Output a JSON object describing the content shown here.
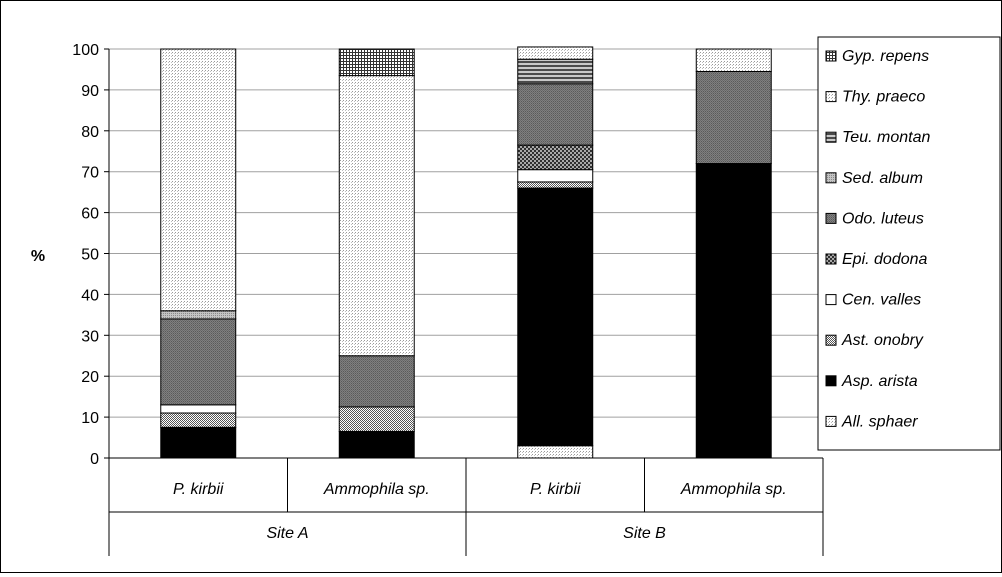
{
  "chart_data": {
    "type": "bar",
    "stacked": true,
    "title": "",
    "ylabel": "%",
    "xlabel": "",
    "ylim": [
      0,
      100
    ],
    "yticks": [
      0,
      10,
      20,
      30,
      40,
      50,
      60,
      70,
      80,
      90,
      100
    ],
    "grid": true,
    "legend_position": "right",
    "categories": [
      "P. kirbii",
      "Ammophila sp.",
      "P. kirbii",
      "Ammophila sp."
    ],
    "groups": [
      {
        "label": "Site A",
        "categories": [
          0,
          1
        ]
      },
      {
        "label": "Site B",
        "categories": [
          2,
          3
        ]
      }
    ],
    "series": [
      {
        "name": "All. sphaer",
        "values": [
          0,
          0,
          3,
          0
        ],
        "color": "#e8e8e8",
        "pattern": "dots-light"
      },
      {
        "name": "Asp. arista",
        "values": [
          7.5,
          6.5,
          63,
          72
        ],
        "color": "#000000",
        "pattern": "solid"
      },
      {
        "name": "Ast. onobry",
        "values": [
          3.5,
          6,
          1.5,
          0
        ],
        "color": "#a8a8a8",
        "pattern": "dots-medium"
      },
      {
        "name": "Cen. valles",
        "values": [
          2,
          0,
          3,
          0
        ],
        "color": "#ffffff",
        "pattern": "solid"
      },
      {
        "name": "Epi. dodona",
        "values": [
          0,
          0,
          6,
          0
        ],
        "color": "#8a8a8a",
        "pattern": "crosshatch"
      },
      {
        "name": "Odo. luteus",
        "values": [
          21,
          12.5,
          15,
          22.5
        ],
        "color": "#777777",
        "pattern": "dense"
      },
      {
        "name": "Sed. album",
        "values": [
          2,
          0,
          0,
          0
        ],
        "color": "#b0b0b0",
        "pattern": "fine"
      },
      {
        "name": "Teu. montan",
        "values": [
          0,
          0,
          6,
          0
        ],
        "color": "#808080",
        "pattern": "hlines"
      },
      {
        "name": "Thy. praeco",
        "values": [
          64,
          68.5,
          3,
          5.5
        ],
        "color": "#f0f0f0",
        "pattern": "dots-light"
      },
      {
        "name": "Gyp. repens",
        "values": [
          0,
          6.5,
          0,
          0
        ],
        "color": "#707070",
        "pattern": "grid"
      }
    ]
  }
}
